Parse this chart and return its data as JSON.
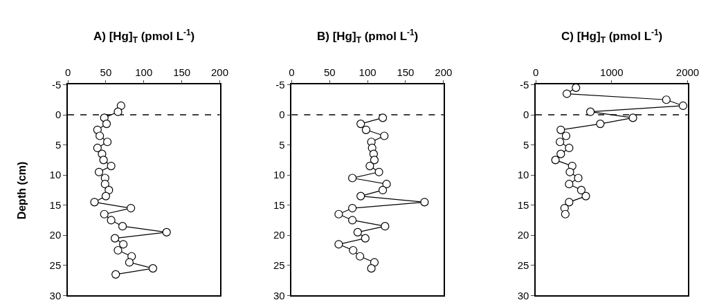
{
  "chart_data": [
    {
      "type": "line",
      "title": "A) [Hg]$_{T}$ (pmol L$^{-1}$)",
      "ylabel": "Depth (cm)",
      "xlim": [
        0,
        200
      ],
      "xticks": [
        0,
        50,
        100,
        150,
        200
      ],
      "ylim": [
        30,
        -5
      ],
      "yticks": [
        -5,
        0,
        5,
        10,
        15,
        20,
        25,
        30
      ],
      "marker": "circle",
      "line_style": "solid",
      "ref_lines": [
        {
          "axis": "y",
          "value": 0,
          "line_style": "dashed",
          "color": "#000000"
        }
      ],
      "series": [
        {
          "color": "#000000",
          "x": [
            70,
            66,
            48,
            51,
            39,
            42,
            52,
            39,
            45,
            47,
            57,
            41,
            49,
            49,
            54,
            50,
            35,
            83,
            48,
            57,
            72,
            130,
            62,
            73,
            66,
            84,
            81,
            112,
            63
          ],
          "values": [
            -1.5,
            -0.5,
            0.5,
            1.5,
            2.5,
            3.5,
            4.5,
            5.5,
            6.5,
            7.5,
            8.5,
            9.5,
            10.5,
            11.5,
            12.5,
            13.5,
            14.5,
            15.5,
            16.5,
            17.5,
            18.5,
            19.5,
            20.5,
            21.5,
            22.5,
            23.5,
            24.5,
            25.5,
            26.5
          ]
        }
      ]
    },
    {
      "type": "line",
      "title": "B) [Hg]$_{T}$ (pmol L$^{-1}$)",
      "xlim": [
        0,
        200
      ],
      "xticks": [
        0,
        50,
        100,
        150,
        200
      ],
      "ylim": [
        30,
        -5
      ],
      "yticks": [
        -5,
        0,
        5,
        10,
        15,
        20,
        25,
        30
      ],
      "marker": "circle",
      "line_style": "solid",
      "ref_lines": [
        {
          "axis": "y",
          "value": 0,
          "line_style": "dashed",
          "color": "#000000"
        }
      ],
      "series": [
        {
          "color": "#000000",
          "x": [
            120,
            91,
            98,
            122,
            105,
            106,
            108,
            109,
            103,
            115,
            80,
            125,
            120,
            91,
            175,
            80,
            62,
            80,
            123,
            87,
            97,
            62,
            81,
            90,
            109,
            105
          ],
          "values": [
            0.5,
            1.5,
            2.5,
            3.5,
            4.5,
            5.5,
            6.5,
            7.5,
            8.5,
            9.5,
            10.5,
            11.5,
            12.5,
            13.5,
            14.5,
            15.5,
            16.5,
            17.5,
            18.5,
            19.5,
            20.5,
            21.5,
            22.5,
            23.5,
            24.5,
            25.5
          ]
        }
      ]
    },
    {
      "type": "line",
      "title": "C) [Hg]$_{T}$ (pmol L$^{-1}$)",
      "xlim": [
        0,
        2000
      ],
      "xticks": [
        0,
        1000,
        2000
      ],
      "ylim": [
        30,
        -5
      ],
      "yticks": [
        -5,
        0,
        5,
        10,
        15,
        20,
        25,
        30
      ],
      "marker": "circle",
      "line_style": "solid",
      "ref_lines": [
        {
          "axis": "y",
          "value": 0,
          "line_style": "dashed",
          "color": "#000000"
        }
      ],
      "series": [
        {
          "color": "#000000",
          "x": [
            530,
            410,
            1720,
            1940,
            720,
            1280,
            850,
            330,
            400,
            320,
            440,
            330,
            260,
            480,
            450,
            560,
            440,
            600,
            660,
            440,
            380,
            390
          ],
          "values": [
            -4.5,
            -3.5,
            -2.5,
            -1.5,
            -0.5,
            0.5,
            1.5,
            2.5,
            3.5,
            4.5,
            5.5,
            6.5,
            7.5,
            8.5,
            9.5,
            10.5,
            11.5,
            12.5,
            13.5,
            14.5,
            15.5,
            16.5
          ]
        }
      ]
    }
  ]
}
